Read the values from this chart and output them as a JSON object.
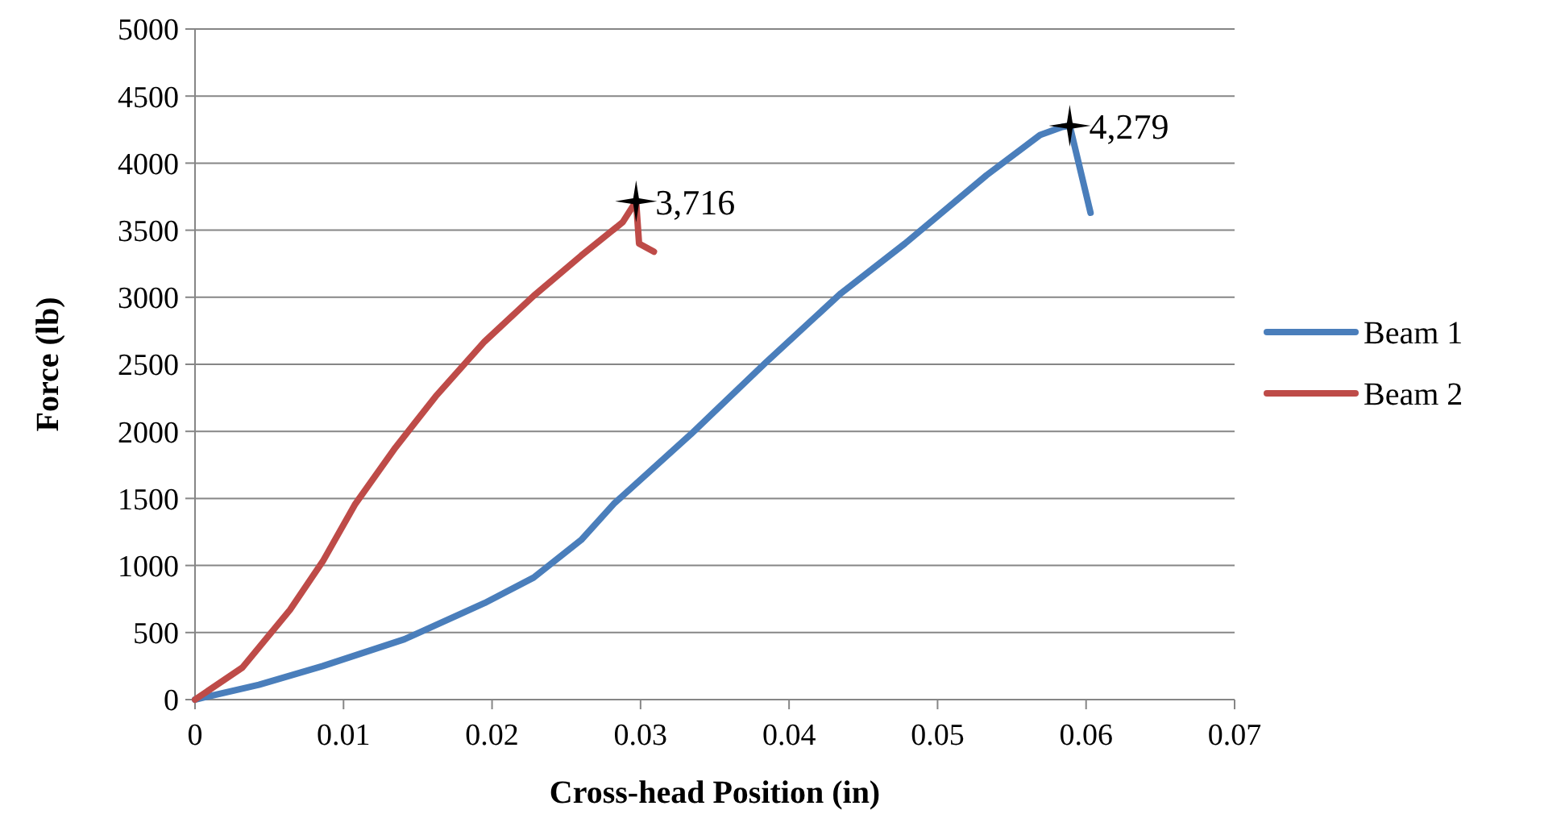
{
  "chart_data": {
    "type": "line",
    "xlabel": "Cross-head Position (in)",
    "ylabel": "Force (lb)",
    "xlim": [
      0,
      0.07
    ],
    "xticks": [
      0,
      0.01,
      0.02,
      0.03,
      0.04,
      0.05,
      0.06,
      0.07
    ],
    "ylim": [
      0,
      5000
    ],
    "yticks": [
      0,
      500,
      1000,
      1500,
      2000,
      2500,
      3000,
      3500,
      4000,
      4500,
      5000
    ],
    "grid": "y",
    "legend": "right",
    "marker": "none",
    "line_style": "solid",
    "series": [
      {
        "name": "Beam 1",
        "color": "#4a7ebb",
        "x": [
          0,
          0.0043,
          0.0086,
          0.0141,
          0.0195,
          0.0228,
          0.026,
          0.0282,
          0.0334,
          0.0384,
          0.0435,
          0.0478,
          0.0533,
          0.0569,
          0.0584,
          0.0589,
          0.0603
        ],
        "values": [
          0,
          110,
          250,
          450,
          720,
          910,
          1190,
          1460,
          1980,
          2510,
          3030,
          3400,
          3910,
          4210,
          4270,
          4279,
          3630
        ]
      },
      {
        "name": "Beam 2",
        "color": "#be4b48",
        "x": [
          0,
          0.0032,
          0.0064,
          0.0086,
          0.0108,
          0.0135,
          0.0162,
          0.0195,
          0.0228,
          0.026,
          0.0288,
          0.0297,
          0.0299,
          0.0309
        ],
        "values": [
          0,
          240,
          670,
          1030,
          1460,
          1880,
          2260,
          2670,
          3010,
          3310,
          3560,
          3716,
          3400,
          3340
        ]
      }
    ],
    "annotations": [
      {
        "text": "4,279",
        "x": 0.0589,
        "y": 4279
      },
      {
        "text": "3,716",
        "x": 0.0297,
        "y": 3716
      }
    ]
  }
}
